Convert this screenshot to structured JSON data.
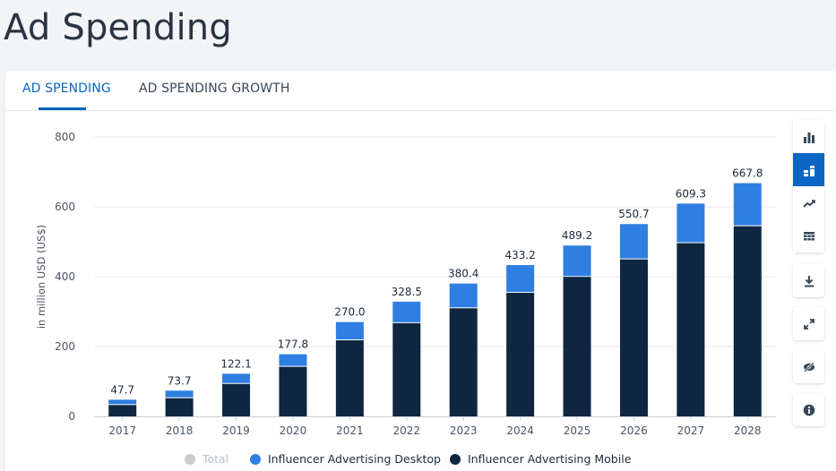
{
  "page": {
    "title": "Ad Spending"
  },
  "tabs": [
    {
      "label": "AD SPENDING",
      "active": true
    },
    {
      "label": "AD SPENDING GROWTH",
      "active": false
    }
  ],
  "toolbar": {
    "icons": [
      "bar-chart-icon",
      "stacked-bar-icon",
      "line-chart-icon",
      "table-icon",
      "download-icon",
      "expand-icon",
      "hide-icon",
      "info-icon"
    ],
    "active": "stacked-bar-icon"
  },
  "colors": {
    "desktop": "#2e7fe1",
    "mobile": "#0f2640",
    "total": "#c9ccd1",
    "accent": "#0a66c2"
  },
  "chart_data": {
    "type": "bar",
    "stacked": true,
    "ylabel": "in million USD (US$)",
    "ylim": [
      0,
      800
    ],
    "yticks": [
      0,
      200,
      400,
      600,
      800
    ],
    "grid": true,
    "legend_position": "bottom",
    "categories": [
      "2017",
      "2018",
      "2019",
      "2020",
      "2021",
      "2022",
      "2023",
      "2024",
      "2025",
      "2026",
      "2027",
      "2028"
    ],
    "series": [
      {
        "name": "Influencer Advertising Mobile",
        "values": [
          32.5,
          52.0,
          93.0,
          142.0,
          218.0,
          267.0,
          309.5,
          354.0,
          399.5,
          449.5,
          496.0,
          544.5
        ]
      },
      {
        "name": "Influencer Advertising Desktop",
        "values": [
          15.2,
          21.7,
          29.1,
          35.8,
          52.0,
          61.5,
          70.9,
          79.2,
          89.7,
          101.2,
          113.3,
          123.3
        ]
      }
    ],
    "totals": [
      "47.7",
      "73.7",
      "122.1",
      "177.8",
      "270.0",
      "328.5",
      "380.4",
      "433.2",
      "489.2",
      "550.7",
      "609.3",
      "667.8"
    ],
    "legend": [
      {
        "name": "Total",
        "enabled": false
      },
      {
        "name": "Influencer Advertising Desktop",
        "enabled": true
      },
      {
        "name": "Influencer Advertising Mobile",
        "enabled": true
      }
    ]
  }
}
